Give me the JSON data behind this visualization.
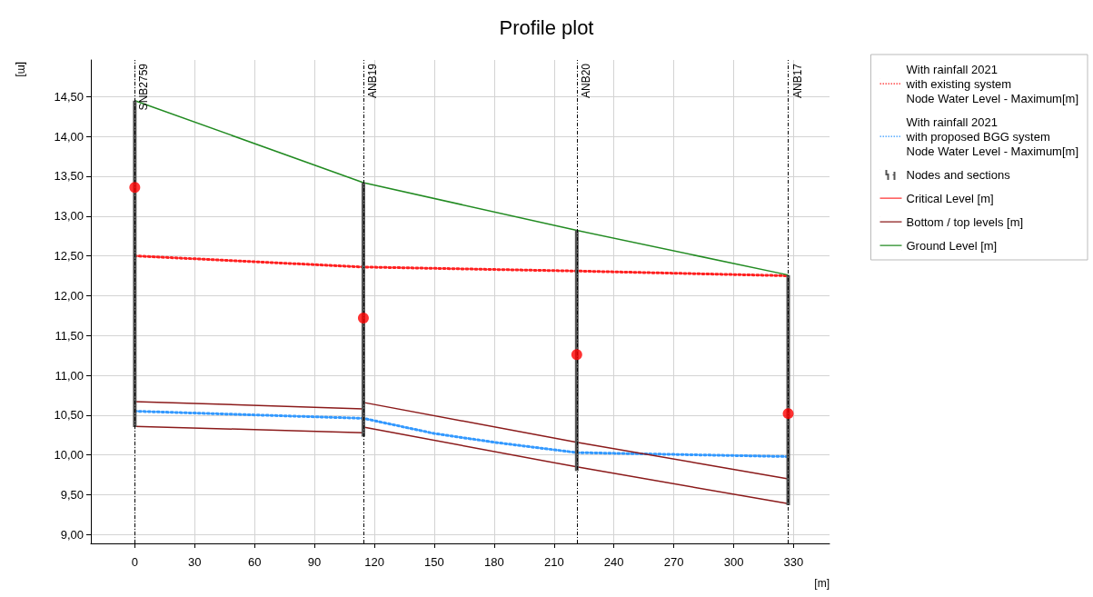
{
  "chart_data": {
    "type": "line",
    "title": "Profile plot",
    "xlabel": "[m]",
    "ylabel": "[m]",
    "xlim": [
      -22,
      348
    ],
    "xticks": [
      0,
      30,
      60,
      90,
      120,
      150,
      180,
      210,
      240,
      270,
      300,
      330
    ],
    "ylim": [
      8.89,
      14.96
    ],
    "yticks": [
      {
        "value": 9,
        "label": "9,00"
      },
      {
        "value": 9.5,
        "label": "9,50"
      },
      {
        "value": 10,
        "label": "10,00"
      },
      {
        "value": 10.5,
        "label": "10,50"
      },
      {
        "value": 11,
        "label": "11,00"
      },
      {
        "value": 11.5,
        "label": "11,50"
      },
      {
        "value": 12,
        "label": "12,00"
      },
      {
        "value": 12.5,
        "label": "12,50"
      },
      {
        "value": 13,
        "label": "13,00"
      },
      {
        "value": 13.5,
        "label": "13,50"
      },
      {
        "value": 14,
        "label": "14,00"
      },
      {
        "value": 14.5,
        "label": "14,50"
      }
    ],
    "grid": true,
    "legend": "right",
    "marker": "none",
    "series": [
      {
        "name": "With rainfall 2021\nwith existing system\nNode Water Level - Maximum[m]",
        "color": "#ff2020",
        "line_style": "dotted",
        "x": [
          0,
          114.5,
          221.4,
          327.3
        ],
        "values": [
          12.5,
          12.36,
          12.31,
          12.25
        ]
      },
      {
        "name": "With rainfall 2021\nwith proposed BGG system\nNode Water Level - Maximum[m]",
        "color": "#3399ff",
        "line_style": "dotted",
        "x": [
          0,
          114.5,
          150,
          180,
          221.4,
          327.3
        ],
        "values": [
          10.55,
          10.46,
          10.27,
          10.16,
          10.03,
          9.98
        ]
      },
      {
        "name": "Nodes and sections",
        "type": "bar",
        "color": "#555555",
        "x": [
          0,
          114.5,
          221.4,
          327.3
        ],
        "base": [
          10.35,
          10.23,
          9.8,
          9.37
        ],
        "values": [
          4.1,
          3.19,
          3.02,
          2.89
        ]
      },
      {
        "name": "Critical Level [m]",
        "type": "scatter",
        "marker": "circle",
        "color": "#ff0000",
        "x": [
          0,
          114.5,
          221.4,
          327.3
        ],
        "values": [
          13.36,
          11.72,
          11.26,
          10.52
        ]
      },
      {
        "name": "Bottom / top levels [m]",
        "color": "#8b1a1a",
        "line_style": "solid",
        "x": [
          0,
          114.5,
          114.5,
          221.4,
          327.3
        ],
        "values": [
          10.67,
          10.58,
          10.66,
          10.16,
          9.7
        ]
      },
      {
        "color": "#8b1a1a",
        "line_style": "solid",
        "x": [
          0,
          114.5,
          114.5,
          221.4,
          327.3
        ],
        "values": [
          10.36,
          10.28,
          10.35,
          9.85,
          9.39
        ]
      },
      {
        "name": "Ground Level [m]",
        "color": "#228b22",
        "line_style": "solid",
        "x": [
          0,
          114.5,
          221.4,
          327.3
        ],
        "values": [
          14.45,
          13.42,
          12.82,
          12.26
        ]
      }
    ],
    "ref_lines": [
      {
        "axis": "x",
        "value": 0,
        "label": "SNB2759",
        "color": "#000000",
        "line_style": "dashed"
      },
      {
        "axis": "x",
        "value": 114.5,
        "label": "ANB19",
        "color": "#000000",
        "line_style": "dashed"
      },
      {
        "axis": "x",
        "value": 221.4,
        "label": "ANB20",
        "color": "#000000",
        "line_style": "dashed"
      },
      {
        "axis": "x",
        "value": 327.3,
        "label": "ANB17",
        "color": "#000000",
        "line_style": "dashed"
      }
    ]
  }
}
